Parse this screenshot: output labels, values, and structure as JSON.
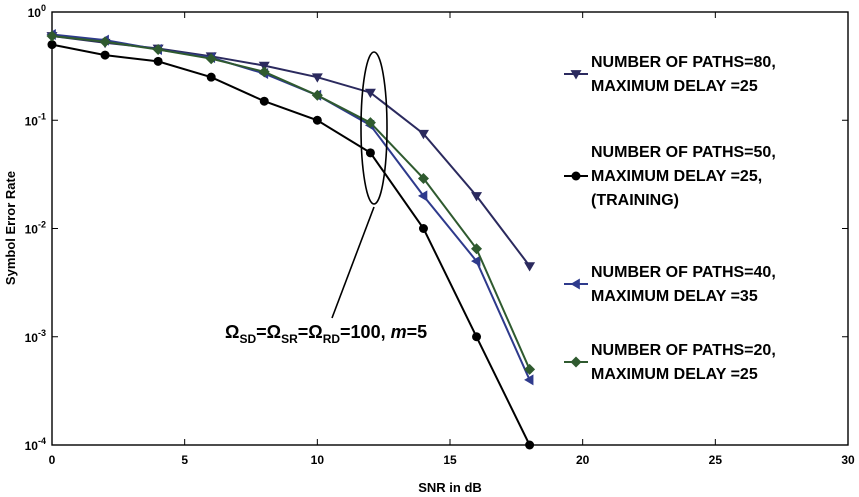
{
  "chart_data": {
    "type": "line",
    "title": "",
    "xlabel": "SNR in dB",
    "ylabel": "Symbol Error Rate",
    "xlim": [
      0,
      30
    ],
    "ylim": [
      0.0001,
      1
    ],
    "yscale": "log",
    "grid": false,
    "legend_placement": "right",
    "x_ticks": [
      "0",
      "5",
      "10",
      "15",
      "20",
      "25",
      "30"
    ],
    "y_ticks": [
      {
        "value": 1,
        "base": "10",
        "exp": "0"
      },
      {
        "value": 0.1,
        "base": "10",
        "exp": "-1"
      },
      {
        "value": 0.01,
        "base": "10",
        "exp": "-2"
      },
      {
        "value": 0.001,
        "base": "10",
        "exp": "-3"
      },
      {
        "value": 0.0001,
        "base": "10",
        "exp": "-4"
      }
    ],
    "x": [
      0,
      2,
      4,
      6,
      8,
      10,
      12,
      14,
      16,
      18
    ],
    "series": [
      {
        "name_lines": [
          "NUMBER OF PATHS=80,",
          "MAXIMUM DELAY =25"
        ],
        "marker": "triangle-down",
        "color": "#2b2a5e",
        "values": [
          0.6,
          0.52,
          0.46,
          0.39,
          0.32,
          0.25,
          0.18,
          0.075,
          0.02,
          0.0045
        ]
      },
      {
        "name_lines": [
          "NUMBER OF PATHS=50,",
          "MAXIMUM DELAY =25,",
          "(TRAINING)"
        ],
        "marker": "circle",
        "color": "#000000",
        "values": [
          0.5,
          0.4,
          0.35,
          0.25,
          0.15,
          0.1,
          0.05,
          0.01,
          0.001,
          0.0001
        ]
      },
      {
        "name_lines": [
          "NUMBER OF PATHS=40,",
          "MAXIMUM DELAY =35"
        ],
        "marker": "triangle-left",
        "color": "#2e3a8c",
        "values": [
          0.62,
          0.55,
          0.45,
          0.38,
          0.27,
          0.17,
          0.09,
          0.02,
          0.005,
          0.0004
        ]
      },
      {
        "name_lines": [
          "NUMBER OF PATHS=20,",
          "MAXIMUM DELAY =25"
        ],
        "marker": "diamond",
        "color": "#2f5a2f",
        "values": [
          0.6,
          0.53,
          0.45,
          0.37,
          0.28,
          0.17,
          0.095,
          0.029,
          0.0065,
          0.0005
        ]
      }
    ],
    "annotation": {
      "omega": "Ω",
      "sub_sd": "SD",
      "sub_sr": "SR",
      "sub_rd": "RD",
      "equals": "=",
      "value": "=100, ",
      "m_label": "m",
      "m_value": "=5",
      "ellipse_center": {
        "x": 12.2,
        "y": 0.1
      }
    }
  }
}
